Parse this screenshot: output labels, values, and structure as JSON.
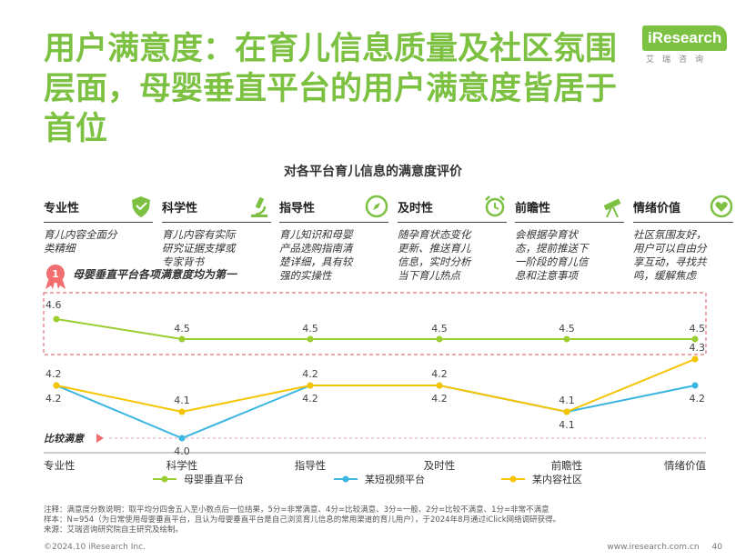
{
  "title": "用户满意度：在育儿信息质量及社区氛围层面，母婴垂直平台的用户满意度皆居于首位",
  "logo": {
    "brand": "iResearch",
    "sub": "艾瑞咨询"
  },
  "colors": {
    "green": "#9acd32",
    "blue": "#3bb6e0",
    "yellow": "#f6c400",
    "accent": "#7dc142",
    "red": "#e57373"
  },
  "dimensions": [
    {
      "label": "专业性",
      "icon": "shield-icon",
      "desc": "育儿内容全面分类精细"
    },
    {
      "label": "科学性",
      "icon": "microscope-icon",
      "desc": "育儿内容有实际研究证据支撑或专家背书"
    },
    {
      "label": "指导性",
      "icon": "compass-icon",
      "desc": "育儿知识和母婴产品选购指南清楚详细，具有较强的实操性"
    },
    {
      "label": "及时性",
      "icon": "alarm-clock-icon",
      "desc": "随孕育状态变化更新、推送育儿信息，实时分析当下育儿热点"
    },
    {
      "label": "前瞻性",
      "icon": "telescope-icon",
      "desc": "会根据孕育状态，提前推送下一阶段的育儿信息和注意事项"
    },
    {
      "label": "情绪价值",
      "icon": "heart-icon",
      "desc": "社区氛围友好，用户可以自由分享互动，寻找共鸣，缓解焦虑"
    }
  ],
  "rank_badge": {
    "number": "1",
    "text": "母婴垂直平台各项满意度均为第一"
  },
  "baseline_label": "比较满意",
  "chart_data": {
    "type": "line",
    "title": "对各平台育儿信息的满意度评价",
    "categories": [
      "专业性",
      "科学性",
      "指导性",
      "及时性",
      "前瞻性",
      "情绪价值"
    ],
    "series": [
      {
        "name": "母婴垂直平台",
        "color": "#9acd32",
        "values": [
          4.6,
          4.5,
          4.5,
          4.5,
          4.5,
          4.5
        ]
      },
      {
        "name": "某短视频平台",
        "color": "#3bb6e0",
        "values": [
          4.2,
          4.0,
          4.2,
          4.2,
          4.1,
          4.2
        ]
      },
      {
        "name": "某内容社区",
        "color": "#f6c400",
        "values": [
          4.2,
          4.1,
          4.2,
          4.2,
          4.1,
          4.3
        ]
      }
    ],
    "labels": {
      "top": [
        "4.6",
        "4.5",
        "4.5",
        "4.5",
        "4.5",
        "4.5"
      ],
      "middle_above": [
        "4.2",
        "4.1",
        "4.2",
        "4.2",
        "4.1",
        "4.3"
      ],
      "middle_below": [
        "4.2",
        "4.0",
        "4.2",
        "4.2",
        "4.1",
        "4.2"
      ]
    },
    "ylim": [
      3.95,
      4.7
    ],
    "baseline": 4.0
  },
  "footnotes": {
    "note": "注释：满意度分数说明：取平均分四舍五入至小数点后一位结果，5分=非常满意、4分=比较满意、3分=一般、2分=比较不满意、1分=非常不满意",
    "sample": "样本：N=954（为日常使用母婴垂直平台，且认为母婴垂直平台是自己浏览育儿信息的常用渠道的育儿用户），于2024年8月通过iClick网络调研获得。",
    "source": "来源：艾瑞咨询研究院自主研究及绘制。"
  },
  "footer": {
    "copyright": "©2024.10 iResearch Inc.",
    "url": "www.iresearch.com.cn",
    "page": "40"
  }
}
